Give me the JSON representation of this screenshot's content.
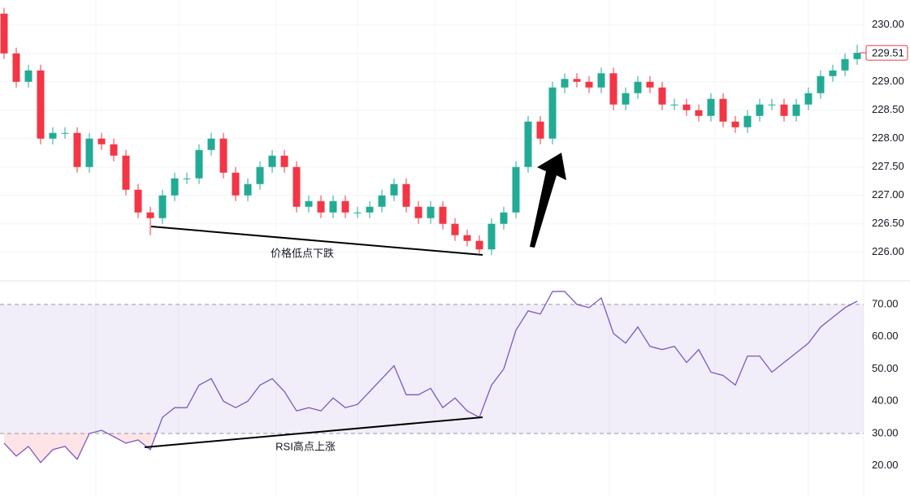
{
  "chart_data": [
    {
      "type": "candlestick",
      "up_color": "#22ab94",
      "down_color": "#f23645",
      "open": [
        230.2,
        229.5,
        229.0,
        229.2,
        228.0,
        228.1,
        228.1,
        227.5,
        228.0,
        227.9,
        227.7,
        227.1,
        226.7,
        226.6,
        227.0,
        227.3,
        227.3,
        227.8,
        228.0,
        227.4,
        227.0,
        227.2,
        227.5,
        227.7,
        227.5,
        226.8,
        226.9,
        226.7,
        226.9,
        226.7,
        226.7,
        226.8,
        227.0,
        227.2,
        226.8,
        226.6,
        226.8,
        226.5,
        226.3,
        226.2,
        226.05,
        226.5,
        226.7,
        227.5,
        228.3,
        228.0,
        228.9,
        229.05,
        229.0,
        228.9,
        229.15,
        228.6,
        228.8,
        229.0,
        228.9,
        228.6,
        228.6,
        228.5,
        228.4,
        228.7,
        228.3,
        228.2,
        228.4,
        228.6,
        228.6,
        228.4,
        228.6,
        228.8,
        229.1,
        229.2,
        229.4
      ],
      "high": [
        230.3,
        229.6,
        229.3,
        229.3,
        228.2,
        228.2,
        228.2,
        228.1,
        228.1,
        228.0,
        227.8,
        227.2,
        226.8,
        227.1,
        227.4,
        227.4,
        227.9,
        228.1,
        228.1,
        227.5,
        227.3,
        227.6,
        227.8,
        227.8,
        227.6,
        227.0,
        227.0,
        227.0,
        227.0,
        226.8,
        226.9,
        227.1,
        227.3,
        227.3,
        226.9,
        226.9,
        226.9,
        226.6,
        226.4,
        226.3,
        226.6,
        226.8,
        227.6,
        228.4,
        228.4,
        229.0,
        229.15,
        229.15,
        229.1,
        229.25,
        229.25,
        228.9,
        229.1,
        229.1,
        229.0,
        228.7,
        228.7,
        228.6,
        228.8,
        228.8,
        228.4,
        228.5,
        228.7,
        228.7,
        228.7,
        228.7,
        228.9,
        229.2,
        229.3,
        229.5,
        229.65
      ],
      "low": [
        229.4,
        228.9,
        228.9,
        227.9,
        227.9,
        228.0,
        227.4,
        227.4,
        227.8,
        227.6,
        227.0,
        226.6,
        226.3,
        226.5,
        226.9,
        227.2,
        227.2,
        227.7,
        227.3,
        226.9,
        226.9,
        227.1,
        227.4,
        227.4,
        226.7,
        226.7,
        226.6,
        226.6,
        226.6,
        226.6,
        226.6,
        226.7,
        226.9,
        226.7,
        226.5,
        226.5,
        226.4,
        226.2,
        226.1,
        225.98,
        225.95,
        226.4,
        226.6,
        227.4,
        227.9,
        227.9,
        228.8,
        228.9,
        228.8,
        228.8,
        228.5,
        228.5,
        228.7,
        228.8,
        228.5,
        228.5,
        228.4,
        228.3,
        228.3,
        228.2,
        228.1,
        228.1,
        228.3,
        228.5,
        228.3,
        228.3,
        228.5,
        228.7,
        229.0,
        229.1,
        229.3
      ],
      "close": [
        229.5,
        229.0,
        229.2,
        228.0,
        228.1,
        228.1,
        227.5,
        228.0,
        227.9,
        227.7,
        227.1,
        226.7,
        226.6,
        227.0,
        227.3,
        227.3,
        227.8,
        228.0,
        227.4,
        227.0,
        227.2,
        227.5,
        227.7,
        227.5,
        226.8,
        226.9,
        226.7,
        226.9,
        226.7,
        226.7,
        226.8,
        227.0,
        227.2,
        226.8,
        226.6,
        226.8,
        226.5,
        226.3,
        226.2,
        226.05,
        226.5,
        226.7,
        227.5,
        228.3,
        228.0,
        228.9,
        229.05,
        229.0,
        228.9,
        229.15,
        228.6,
        228.8,
        229.0,
        228.9,
        228.6,
        228.6,
        228.5,
        228.4,
        228.7,
        228.3,
        228.2,
        228.4,
        228.6,
        228.6,
        228.4,
        228.6,
        228.8,
        229.1,
        229.2,
        229.4,
        229.51
      ],
      "ylim": [
        225.51,
        230.44
      ],
      "yticks": [
        {
          "value": 226,
          "label": "226.00"
        },
        {
          "value": 226.5,
          "label": "226.50"
        },
        {
          "value": 227,
          "label": "227.00"
        },
        {
          "value": 227.5,
          "label": "227.50"
        },
        {
          "value": 228,
          "label": "228.00"
        },
        {
          "value": 228.5,
          "label": "228.50"
        },
        {
          "value": 229,
          "label": "229.00"
        },
        {
          "value": 229.5,
          "label": "229.50"
        },
        {
          "value": 230,
          "label": "230.00"
        }
      ],
      "grid": true,
      "annotation": "价格低点下跌"
    },
    {
      "type": "line",
      "color": "#7e57c2",
      "values": [
        27,
        23,
        26,
        21,
        25,
        26,
        22,
        30,
        31,
        29,
        27,
        28,
        25,
        35,
        38,
        38,
        45,
        47,
        40,
        38,
        40,
        45,
        47,
        43,
        37,
        38,
        37,
        41,
        38,
        39,
        43,
        47,
        51,
        42,
        42,
        44,
        38,
        41,
        37,
        35,
        45,
        50,
        62,
        68,
        67,
        74,
        74,
        70,
        69,
        72,
        61,
        58,
        63,
        57,
        56,
        57,
        52,
        56,
        49,
        48,
        45,
        54,
        54,
        49,
        52,
        55,
        58,
        63,
        66,
        69,
        71
      ],
      "ylim": [
        10.63,
        77.04
      ],
      "yticks": [
        {
          "value": 20,
          "label": "20.00"
        },
        {
          "value": 30,
          "label": "30.00"
        },
        {
          "value": 40,
          "label": "40.00"
        },
        {
          "value": 50,
          "label": "50.00"
        },
        {
          "value": 60,
          "label": "60.00"
        },
        {
          "value": 70,
          "label": "70.00"
        }
      ],
      "overbought": 70,
      "oversold": 30,
      "annotation": "RSI高点上涨"
    }
  ]
}
